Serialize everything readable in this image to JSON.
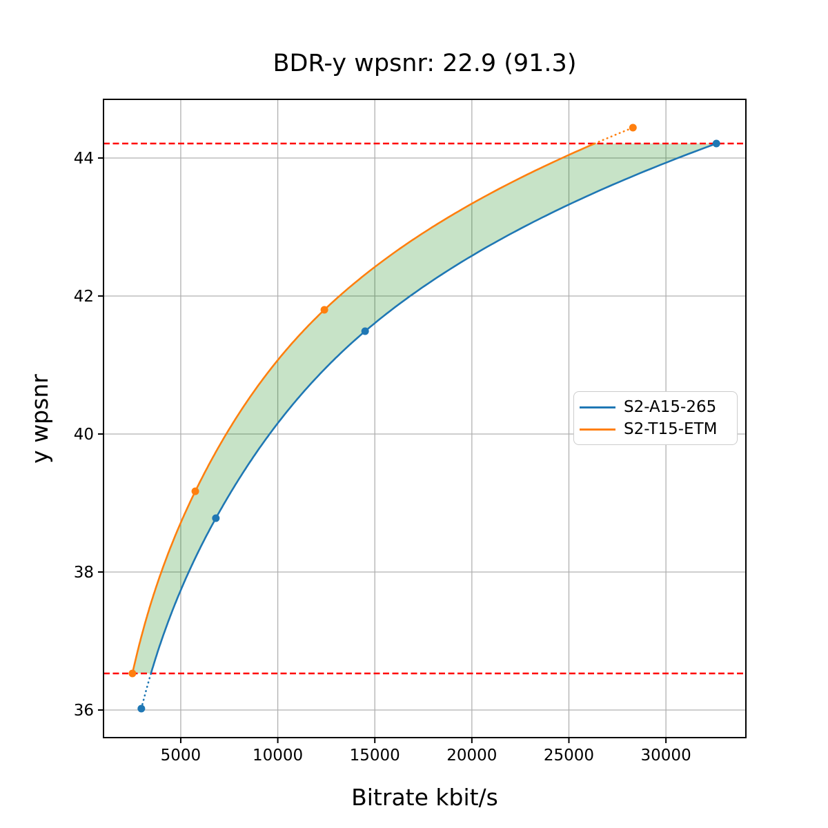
{
  "figure": {
    "background": "#ffffff"
  },
  "chart_data": {
    "type": "line",
    "title": "BDR-y wpsnr: 22.9 (91.3)",
    "xlabel": "Bitrate kbit/s",
    "ylabel": "y wpsnr",
    "xlim": [
      1020,
      34120
    ],
    "ylim": [
      35.6,
      44.85
    ],
    "x_ticks": [
      5000,
      10000,
      15000,
      20000,
      25000,
      30000
    ],
    "y_ticks": [
      36,
      38,
      40,
      42,
      44
    ],
    "grid": true,
    "grid_color": "#b0b0b0",
    "legend_position": "center-right",
    "series": [
      {
        "name": "S2-A15-265",
        "color": "#1f77b4",
        "marker": "circle",
        "x": [
          2970,
          6810,
          14500,
          32600
        ],
        "y": [
          36.02,
          38.78,
          41.49,
          44.21
        ]
      },
      {
        "name": "S2-T15-ETM",
        "color": "#ff7f0e",
        "marker": "circle",
        "x": [
          2510,
          5750,
          12400,
          28300
        ],
        "y": [
          36.53,
          39.17,
          41.8,
          44.44
        ]
      }
    ],
    "hlines": [
      {
        "y": 44.21,
        "color": "#ff0000",
        "style": "dashed"
      },
      {
        "y": 36.53,
        "color": "#ff0000",
        "style": "dashed"
      }
    ],
    "fill_between": {
      "color": "#008000",
      "opacity": 0.22,
      "from_y": 36.53,
      "to_y": 44.21
    }
  },
  "legend": {
    "items": [
      {
        "label": "S2-A15-265",
        "color": "#1f77b4"
      },
      {
        "label": "S2-T15-ETM",
        "color": "#ff7f0e"
      }
    ]
  }
}
